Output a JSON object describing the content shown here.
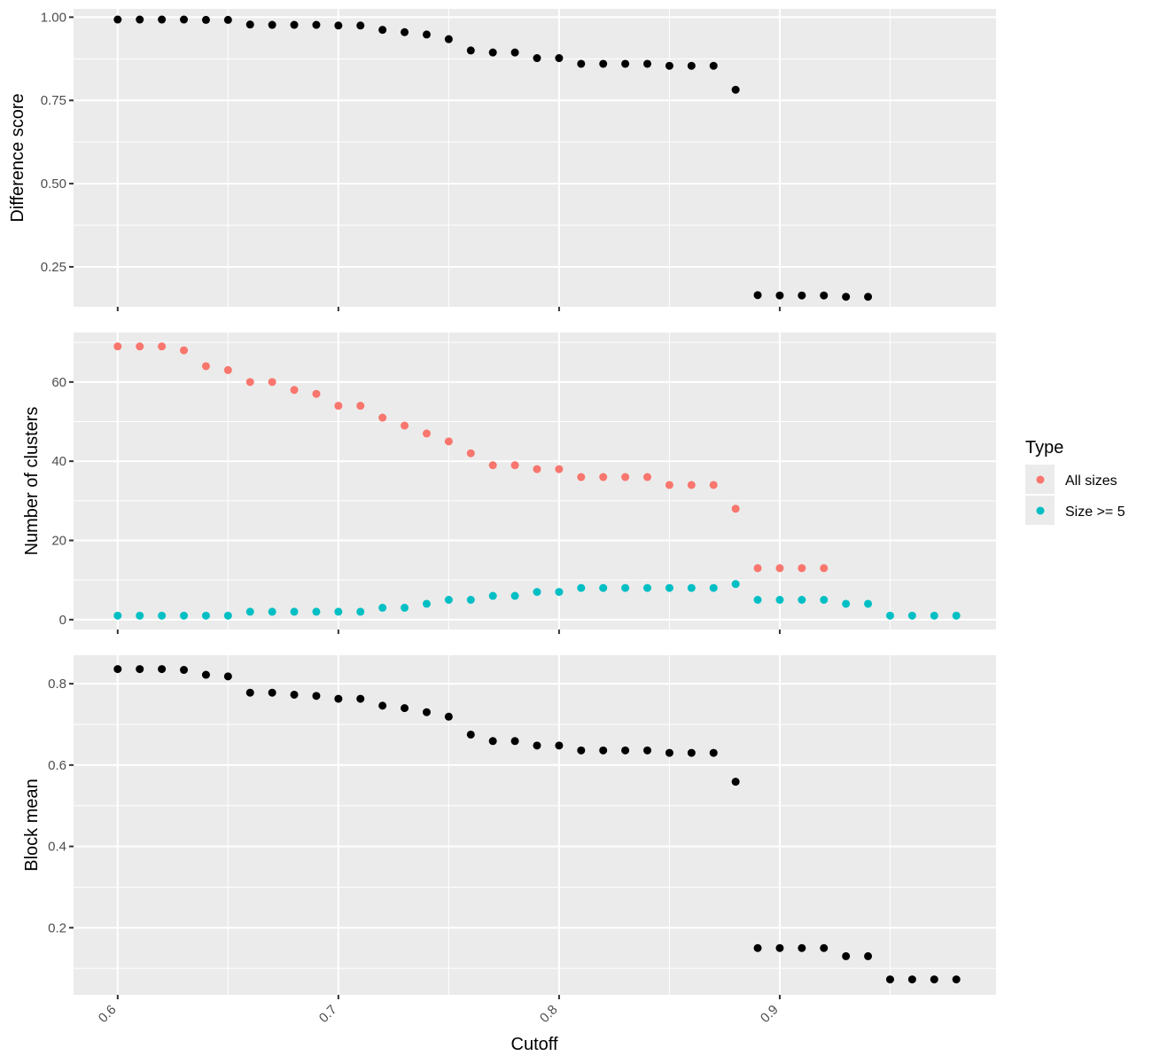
{
  "chart_data": [
    {
      "type": "scatter",
      "ylabel": "Difference score",
      "xlim": [
        0.58,
        0.998
      ],
      "ylim": [
        0.13,
        1.025
      ],
      "y_ticks": [
        "0.25",
        "0.50",
        "0.75",
        "1.00"
      ],
      "y_tick_values": [
        0.25,
        0.5,
        0.75,
        1.0
      ],
      "series": [
        {
          "color": "#000000",
          "x": [
            0.6,
            0.61,
            0.62,
            0.63,
            0.64,
            0.65,
            0.66,
            0.67,
            0.68,
            0.69,
            0.7,
            0.71,
            0.72,
            0.73,
            0.74,
            0.75,
            0.76,
            0.77,
            0.78,
            0.79,
            0.8,
            0.81,
            0.82,
            0.83,
            0.84,
            0.85,
            0.86,
            0.87,
            0.88,
            0.89,
            0.9,
            0.91,
            0.92,
            0.93,
            0.94
          ],
          "y": [
            0.993,
            0.993,
            0.993,
            0.993,
            0.992,
            0.992,
            0.978,
            0.977,
            0.977,
            0.977,
            0.975,
            0.975,
            0.962,
            0.955,
            0.948,
            0.934,
            0.9,
            0.894,
            0.894,
            0.877,
            0.877,
            0.86,
            0.86,
            0.86,
            0.86,
            0.854,
            0.854,
            0.854,
            0.782,
            0.165,
            0.164,
            0.164,
            0.164,
            0.16,
            0.16
          ]
        }
      ]
    },
    {
      "type": "scatter",
      "ylabel": "Number of clusters",
      "xlim": [
        0.58,
        0.998
      ],
      "ylim": [
        -2.5,
        72.5
      ],
      "y_ticks": [
        "0",
        "20",
        "40",
        "60"
      ],
      "y_tick_values": [
        0,
        20,
        40,
        60
      ],
      "legend": {
        "title": "Type",
        "position": "right",
        "items": [
          {
            "label": "All sizes",
            "color": "#f8766d"
          },
          {
            "label": "Size >= 5",
            "color": "#00bfc4"
          }
        ]
      },
      "series": [
        {
          "name": "All sizes",
          "color": "#f8766d",
          "x": [
            0.6,
            0.61,
            0.62,
            0.63,
            0.64,
            0.65,
            0.66,
            0.67,
            0.68,
            0.69,
            0.7,
            0.71,
            0.72,
            0.73,
            0.74,
            0.75,
            0.76,
            0.77,
            0.78,
            0.79,
            0.8,
            0.81,
            0.82,
            0.83,
            0.84,
            0.85,
            0.86,
            0.87,
            0.88,
            0.89,
            0.9,
            0.91,
            0.92
          ],
          "y": [
            69,
            69,
            69,
            68,
            64,
            63,
            60,
            60,
            58,
            57,
            54,
            54,
            51,
            49,
            47,
            45,
            42,
            39,
            39,
            38,
            38,
            36,
            36,
            36,
            36,
            34,
            34,
            34,
            28,
            13,
            13,
            13,
            13
          ]
        },
        {
          "name": "Size >= 5",
          "color": "#00bfc4",
          "x": [
            0.6,
            0.61,
            0.62,
            0.63,
            0.64,
            0.65,
            0.66,
            0.67,
            0.68,
            0.69,
            0.7,
            0.71,
            0.72,
            0.73,
            0.74,
            0.75,
            0.76,
            0.77,
            0.78,
            0.79,
            0.8,
            0.81,
            0.82,
            0.83,
            0.84,
            0.85,
            0.86,
            0.87,
            0.88,
            0.89,
            0.9,
            0.91,
            0.92,
            0.93,
            0.94,
            0.95,
            0.96,
            0.97,
            0.98
          ],
          "y": [
            1,
            1,
            1,
            1,
            1,
            1,
            2,
            2,
            2,
            2,
            2,
            2,
            3,
            3,
            4,
            5,
            5,
            6,
            6,
            7,
            7,
            8,
            8,
            8,
            8,
            8,
            8,
            8,
            9,
            5,
            5,
            5,
            5,
            4,
            4,
            1,
            1,
            1,
            1
          ]
        }
      ]
    },
    {
      "type": "scatter",
      "ylabel": "Block mean",
      "xlabel": "Cutoff",
      "xlim": [
        0.58,
        0.998
      ],
      "ylim": [
        0.035,
        0.87
      ],
      "y_ticks": [
        "0.2",
        "0.4",
        "0.6",
        "0.8"
      ],
      "y_tick_values": [
        0.2,
        0.4,
        0.6,
        0.8
      ],
      "x_ticks": [
        "0.6",
        "0.7",
        "0.8",
        "0.9"
      ],
      "x_tick_values": [
        0.6,
        0.7,
        0.8,
        0.9
      ],
      "series": [
        {
          "color": "#000000",
          "x": [
            0.6,
            0.61,
            0.62,
            0.63,
            0.64,
            0.65,
            0.66,
            0.67,
            0.68,
            0.69,
            0.7,
            0.71,
            0.72,
            0.73,
            0.74,
            0.75,
            0.76,
            0.77,
            0.78,
            0.79,
            0.8,
            0.81,
            0.82,
            0.83,
            0.84,
            0.85,
            0.86,
            0.87,
            0.88,
            0.89,
            0.9,
            0.91,
            0.92,
            0.93,
            0.94,
            0.95,
            0.96,
            0.97,
            0.98
          ],
          "y": [
            0.836,
            0.836,
            0.836,
            0.834,
            0.822,
            0.818,
            0.778,
            0.778,
            0.773,
            0.77,
            0.763,
            0.763,
            0.746,
            0.74,
            0.73,
            0.719,
            0.675,
            0.659,
            0.659,
            0.648,
            0.648,
            0.636,
            0.636,
            0.636,
            0.636,
            0.63,
            0.63,
            0.63,
            0.559,
            0.15,
            0.15,
            0.15,
            0.15,
            0.13,
            0.13,
            0.073,
            0.073,
            0.073,
            0.073
          ]
        }
      ]
    }
  ]
}
